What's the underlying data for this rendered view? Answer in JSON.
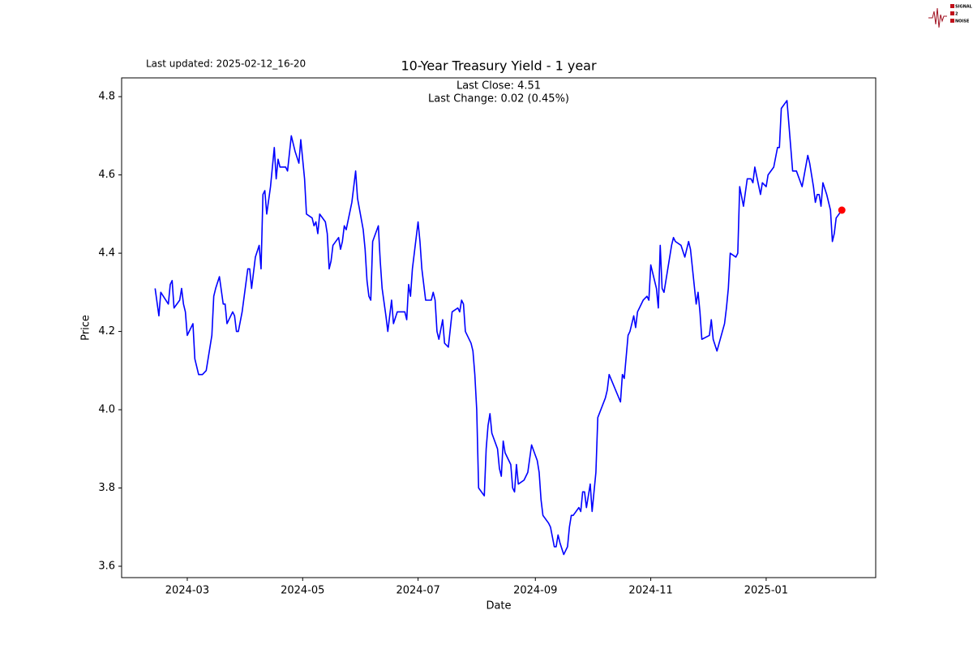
{
  "chart_data": {
    "type": "line",
    "title": "10-Year Treasury Yield - 1 year",
    "annotations": {
      "last_updated": "Last updated: 2025-02-12_16-20",
      "last_close": "Last Close: 4.51",
      "last_change": "Last Change: 0.02 (0.45%)"
    },
    "logo": [
      "SIGNAL",
      "2",
      "NOISE"
    ],
    "x_label": "Date",
    "y_label": "Price",
    "color": "#0000ff",
    "last_point_color": "#ff0000",
    "x": [
      19766,
      19768,
      19769,
      19773,
      19774,
      19775,
      19776,
      19779,
      19780,
      19781,
      19782,
      19783,
      19786,
      19787,
      19789,
      19791,
      19793,
      19795,
      19796,
      19797,
      19798,
      19800,
      19802,
      19803,
      19804,
      19807,
      19808,
      19809,
      19810,
      19812,
      19815,
      19816,
      19817,
      19819,
      19821,
      19822,
      19823,
      19824,
      19825,
      19827,
      19829,
      19830,
      19831,
      19832,
      19835,
      19836,
      19838,
      19840,
      19842,
      19843,
      19845,
      19846,
      19849,
      19850,
      19851,
      19852,
      19853,
      19856,
      19857,
      19858,
      19859,
      19860,
      19863,
      19864,
      19865,
      19866,
      19867,
      19870,
      19872,
      19873,
      19876,
      19877,
      19878,
      19879,
      19880,
      19881,
      19884,
      19885,
      19886,
      19888,
      19889,
      19891,
      19892,
      19894,
      19898,
      19899,
      19900,
      19901,
      19902,
      19905,
      19906,
      19907,
      19909,
      19912,
      19913,
      19914,
      19915,
      19916,
      19918,
      19919,
      19921,
      19923,
      19926,
      19927,
      19928,
      19929,
      19930,
      19933,
      19934,
      19935,
      19936,
      19937,
      19940,
      19941,
      19942,
      19943,
      19944,
      19947,
      19948,
      19949,
      19950,
      19951,
      19954,
      19955,
      19956,
      19957,
      19958,
      19961,
      19963,
      19965,
      19968,
      19969,
      19970,
      19971,
      19974,
      19975,
      19977,
      19978,
      19979,
      19980,
      19982,
      19984,
      19985,
      19986,
      19987,
      19990,
      19991,
      19992,
      19993,
      19994,
      19996,
      19997,
      19999,
      20000,
      20004,
      20005,
      20006,
      20012,
      20013,
      20014,
      20016,
      20017,
      20019,
      20020,
      20021,
      20024,
      20026,
      20027,
      20028,
      20031,
      20032,
      20033,
      20034,
      20035,
      20039,
      20040,
      20041,
      20044,
      20046,
      20048,
      20049,
      20052,
      20053,
      20054,
      20055,
      20059,
      20060,
      20061,
      20063,
      20067,
      20068,
      20069,
      20070,
      20073,
      20074,
      20075,
      20077,
      20079,
      20081,
      20082,
      20083,
      20086,
      20087,
      20089,
      20090,
      20093,
      20095,
      20096,
      20097,
      20100,
      20102,
      20103,
      20105,
      20108,
      20111,
      20112,
      20114,
      20115,
      20116,
      20117,
      20118,
      20119,
      20121,
      20123,
      20124,
      20125,
      20126,
      20129
    ],
    "values": [
      4.31,
      4.24,
      4.3,
      4.27,
      4.32,
      4.33,
      4.26,
      4.28,
      4.31,
      4.27,
      4.25,
      4.19,
      4.22,
      4.13,
      4.09,
      4.09,
      4.1,
      4.16,
      4.19,
      4.29,
      4.31,
      4.34,
      4.27,
      4.27,
      4.22,
      4.25,
      4.24,
      4.2,
      4.2,
      4.25,
      4.36,
      4.36,
      4.31,
      4.39,
      4.42,
      4.36,
      4.55,
      4.56,
      4.5,
      4.57,
      4.67,
      4.59,
      4.64,
      4.62,
      4.62,
      4.61,
      4.7,
      4.66,
      4.63,
      4.69,
      4.59,
      4.5,
      4.49,
      4.47,
      4.48,
      4.45,
      4.5,
      4.48,
      4.45,
      4.36,
      4.38,
      4.42,
      4.44,
      4.41,
      4.43,
      4.47,
      4.46,
      4.53,
      4.61,
      4.54,
      4.46,
      4.41,
      4.33,
      4.29,
      4.28,
      4.43,
      4.47,
      4.38,
      4.31,
      4.24,
      4.2,
      4.28,
      4.22,
      4.25,
      4.25,
      4.23,
      4.32,
      4.29,
      4.36,
      4.48,
      4.43,
      4.36,
      4.28,
      4.28,
      4.3,
      4.28,
      4.2,
      4.18,
      4.23,
      4.17,
      4.16,
      4.25,
      4.26,
      4.25,
      4.28,
      4.27,
      4.2,
      4.17,
      4.15,
      4.09,
      4.0,
      3.8,
      3.78,
      3.9,
      3.96,
      3.99,
      3.94,
      3.9,
      3.85,
      3.83,
      3.92,
      3.89,
      3.86,
      3.8,
      3.79,
      3.86,
      3.81,
      3.82,
      3.84,
      3.91,
      3.87,
      3.84,
      3.77,
      3.73,
      3.71,
      3.7,
      3.65,
      3.65,
      3.68,
      3.66,
      3.63,
      3.65,
      3.7,
      3.73,
      3.73,
      3.75,
      3.74,
      3.79,
      3.79,
      3.75,
      3.81,
      3.74,
      3.84,
      3.98,
      4.03,
      4.05,
      4.09,
      4.02,
      4.09,
      4.08,
      4.19,
      4.2,
      4.24,
      4.21,
      4.25,
      4.28,
      4.29,
      4.28,
      4.37,
      4.31,
      4.26,
      4.42,
      4.31,
      4.3,
      4.42,
      4.44,
      4.43,
      4.42,
      4.39,
      4.43,
      4.41,
      4.27,
      4.3,
      4.25,
      4.18,
      4.19,
      4.23,
      4.18,
      4.15,
      4.22,
      4.26,
      4.31,
      4.4,
      4.39,
      4.4,
      4.57,
      4.52,
      4.59,
      4.59,
      4.58,
      4.62,
      4.55,
      4.58,
      4.57,
      4.6,
      4.62,
      4.67,
      4.67,
      4.77,
      4.79,
      4.67,
      4.61,
      4.61,
      4.57,
      4.65,
      4.63,
      4.57,
      4.53,
      4.55,
      4.55,
      4.52,
      4.58,
      4.55,
      4.51,
      4.43,
      4.45,
      4.49,
      4.51
    ],
    "xlim": [
      19748.3,
      20146.9
    ],
    "xticks": [
      {
        "value": 19783,
        "label": "2024-03"
      },
      {
        "value": 19844,
        "label": "2024-05"
      },
      {
        "value": 19905,
        "label": "2024-07"
      },
      {
        "value": 19967,
        "label": "2024-09"
      },
      {
        "value": 20028,
        "label": "2024-11"
      },
      {
        "value": 20089,
        "label": "2025-01"
      }
    ],
    "ylim": [
      3.571,
      4.848
    ],
    "yticks": [
      3.6,
      3.8,
      {
        "value": 4,
        "label": "4.0"
      },
      4.2,
      4.4,
      4.6,
      4.8
    ]
  }
}
